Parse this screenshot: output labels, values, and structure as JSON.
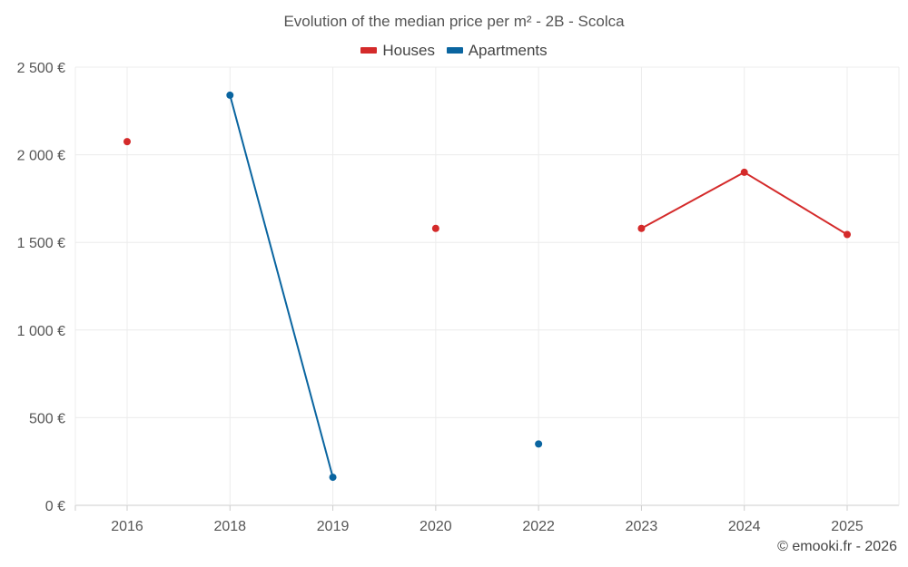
{
  "chart_data": {
    "type": "line",
    "title": "Evolution of the median price per m² - 2B - Scolca",
    "categories": [
      "2016",
      "2018",
      "2019",
      "2020",
      "2022",
      "2023",
      "2024",
      "2025"
    ],
    "y_ticks": [
      "0 €",
      "500 €",
      "1 000 €",
      "1 500 €",
      "2 000 €",
      "2 500 €"
    ],
    "ylim": [
      0,
      2500
    ],
    "xlabel": "",
    "ylabel": "",
    "grid": true,
    "legend_position": "top-center",
    "series": [
      {
        "name": "Houses",
        "color": "#d42a2a",
        "values": [
          2075,
          null,
          null,
          1580,
          null,
          1580,
          1900,
          1545
        ]
      },
      {
        "name": "Apartments",
        "color": "#0a65a0",
        "values": [
          null,
          2340,
          160,
          null,
          350,
          null,
          null,
          null
        ]
      }
    ]
  },
  "credit": "© emooki.fr - 2026"
}
